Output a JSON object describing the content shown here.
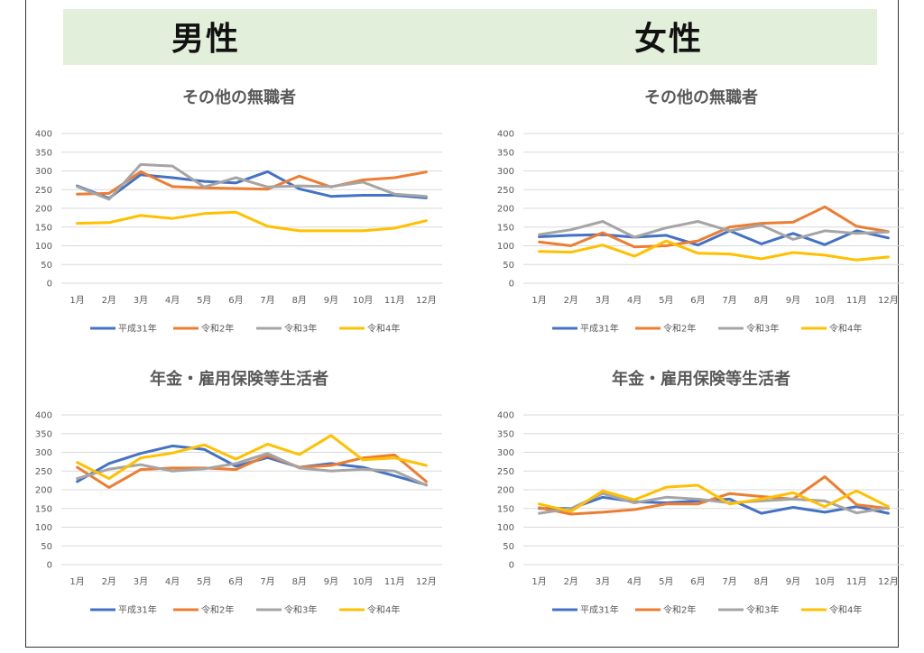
{
  "header": {
    "male": "男性",
    "female": "女性"
  },
  "colors": {
    "平成31年": "#4472c4",
    "令和2年": "#ed7d31",
    "令和3年": "#a5a5a5",
    "令和4年": "#ffc000"
  },
  "chart_data": [
    {
      "type": "line",
      "title": "その他の無職者",
      "categories": [
        "1月",
        "2月",
        "3月",
        "4月",
        "5月",
        "6月",
        "7月",
        "8月",
        "9月",
        "10月",
        "11月",
        "12月"
      ],
      "ylim": [
        0,
        400
      ],
      "yticks": [
        0,
        50,
        100,
        150,
        200,
        250,
        300,
        350,
        400
      ],
      "legend": "bottom",
      "series": [
        {
          "name": "平成31年",
          "values": [
            260,
            227,
            290,
            282,
            272,
            268,
            298,
            252,
            232,
            235,
            235,
            228
          ]
        },
        {
          "name": "令和2年",
          "values": [
            238,
            240,
            298,
            258,
            255,
            253,
            251,
            286,
            257,
            276,
            282,
            297
          ]
        },
        {
          "name": "令和3年",
          "values": [
            258,
            224,
            317,
            313,
            257,
            282,
            257,
            260,
            258,
            270,
            238,
            232
          ]
        },
        {
          "name": "令和4年",
          "values": [
            160,
            162,
            181,
            173,
            186,
            190,
            152,
            140,
            140,
            140,
            147,
            167
          ]
        }
      ]
    },
    {
      "type": "line",
      "title": "その他の無職者",
      "categories": [
        "1月",
        "2月",
        "3月",
        "4月",
        "5月",
        "6月",
        "7月",
        "8月",
        "9月",
        "10月",
        "11月",
        "12月"
      ],
      "ylim": [
        0,
        400
      ],
      "yticks": [
        0,
        50,
        100,
        150,
        200,
        250,
        300,
        350,
        400
      ],
      "legend": "bottom",
      "series": [
        {
          "name": "平成31年",
          "values": [
            124,
            128,
            130,
            123,
            128,
            102,
            140,
            105,
            133,
            103,
            140,
            121
          ]
        },
        {
          "name": "令和2年",
          "values": [
            110,
            100,
            135,
            97,
            100,
            113,
            150,
            160,
            163,
            204,
            152,
            138
          ]
        },
        {
          "name": "令和3年",
          "values": [
            130,
            143,
            165,
            123,
            148,
            165,
            140,
            155,
            117,
            140,
            133,
            137
          ]
        },
        {
          "name": "令和4年",
          "values": [
            85,
            83,
            102,
            72,
            113,
            80,
            78,
            65,
            82,
            75,
            62,
            70
          ]
        }
      ]
    },
    {
      "type": "line",
      "title": "年金・雇用保険等生活者",
      "categories": [
        "1月",
        "2月",
        "3月",
        "4月",
        "5月",
        "6月",
        "7月",
        "8月",
        "9月",
        "10月",
        "11月",
        "12月"
      ],
      "ylim": [
        0,
        400
      ],
      "yticks": [
        0,
        50,
        100,
        150,
        200,
        250,
        300,
        350,
        400
      ],
      "legend": "bottom",
      "series": [
        {
          "name": "平成31年",
          "values": [
            222,
            270,
            297,
            317,
            308,
            263,
            286,
            260,
            270,
            260,
            237,
            213
          ]
        },
        {
          "name": "令和2年",
          "values": [
            260,
            206,
            254,
            258,
            258,
            254,
            292,
            260,
            265,
            285,
            293,
            222
          ]
        },
        {
          "name": "令和3年",
          "values": [
            230,
            255,
            267,
            250,
            256,
            270,
            297,
            258,
            250,
            255,
            250,
            212
          ]
        },
        {
          "name": "令和4年",
          "values": [
            273,
            230,
            285,
            298,
            320,
            282,
            322,
            294,
            345,
            280,
            285,
            265
          ]
        }
      ]
    },
    {
      "type": "line",
      "title": "年金・雇用保険等生活者",
      "categories": [
        "1月",
        "2月",
        "3月",
        "4月",
        "5月",
        "6月",
        "7月",
        "8月",
        "9月",
        "10月",
        "11月",
        "12月"
      ],
      "ylim": [
        0,
        400
      ],
      "yticks": [
        0,
        50,
        100,
        150,
        200,
        250,
        300,
        350,
        400
      ],
      "legend": "bottom",
      "series": [
        {
          "name": "平成31年",
          "values": [
            150,
            150,
            180,
            168,
            165,
            170,
            175,
            137,
            153,
            140,
            155,
            137
          ]
        },
        {
          "name": "令和2年",
          "values": [
            152,
            135,
            140,
            147,
            162,
            162,
            190,
            182,
            175,
            235,
            160,
            150
          ]
        },
        {
          "name": "令和3年",
          "values": [
            137,
            150,
            190,
            165,
            180,
            175,
            165,
            170,
            175,
            170,
            138,
            152
          ]
        },
        {
          "name": "令和4年",
          "values": [
            162,
            142,
            197,
            173,
            207,
            212,
            162,
            175,
            192,
            155,
            197,
            155
          ]
        }
      ]
    }
  ]
}
